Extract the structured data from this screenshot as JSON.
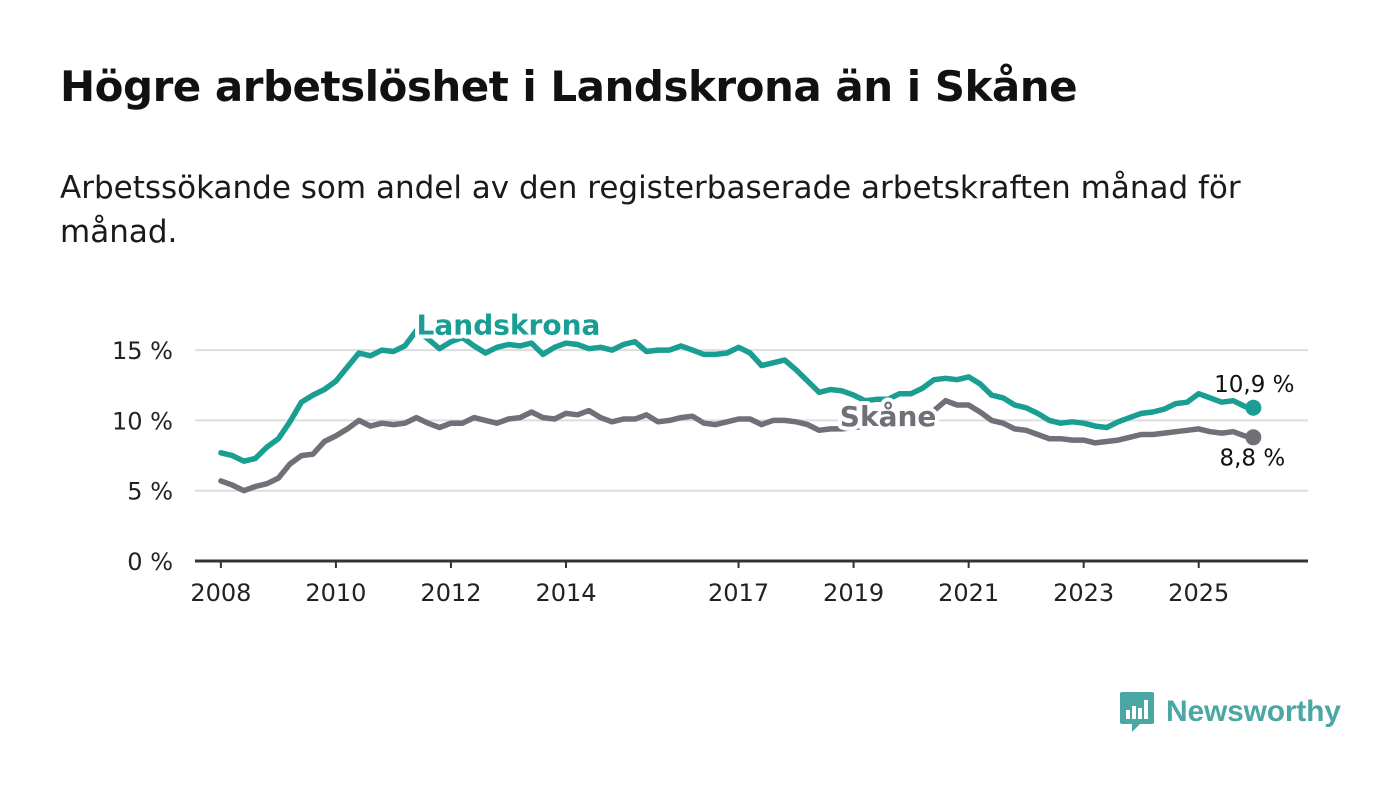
{
  "title": "Högre arbetslöshet i Landskrona än i Skåne",
  "subtitle": "Arbetssökande som andel av den registerbaserade arbetskraften månad för månad.",
  "brand": {
    "name": "Newsworthy",
    "icon": "newsworthy-logo-icon",
    "color": "#4ba7a3"
  },
  "colors": {
    "landskrona": "#1a9e93",
    "skane": "#707078",
    "grid": "#dddddd",
    "axis": "#333333"
  },
  "chart_data": {
    "type": "line",
    "title": "Högre arbetslöshet i Landskrona än i Skåne",
    "xlabel": "",
    "ylabel": "",
    "ylim": [
      0,
      17.5
    ],
    "xlim": [
      2007.55,
      2026.9
    ],
    "x_ticks": [
      2008,
      2010,
      2012,
      2014,
      2017,
      2019,
      2021,
      2023,
      2025
    ],
    "x_tick_labels": [
      "2008",
      "2010",
      "2012",
      "2014",
      "2017",
      "2019",
      "2021",
      "2023",
      "2025"
    ],
    "y_ticks": [
      0,
      5,
      10,
      15
    ],
    "y_tick_labels": [
      "0 %",
      "5 %",
      "10 %",
      "15 %"
    ],
    "series": [
      {
        "name": "Landskrona",
        "end_label": "10,9 %",
        "points": [
          [
            2008.0,
            7.7
          ],
          [
            2008.2,
            7.5
          ],
          [
            2008.4,
            7.1
          ],
          [
            2008.6,
            7.3
          ],
          [
            2008.8,
            8.1
          ],
          [
            2009.0,
            8.7
          ],
          [
            2009.2,
            9.9
          ],
          [
            2009.4,
            11.3
          ],
          [
            2009.6,
            11.8
          ],
          [
            2009.8,
            12.2
          ],
          [
            2010.0,
            12.8
          ],
          [
            2010.2,
            13.8
          ],
          [
            2010.4,
            14.8
          ],
          [
            2010.6,
            14.6
          ],
          [
            2010.8,
            15.0
          ],
          [
            2011.0,
            14.9
          ],
          [
            2011.2,
            15.3
          ],
          [
            2011.4,
            16.4
          ],
          [
            2011.6,
            15.8
          ],
          [
            2011.8,
            15.1
          ],
          [
            2012.0,
            15.6
          ],
          [
            2012.2,
            15.9
          ],
          [
            2012.4,
            15.3
          ],
          [
            2012.6,
            14.8
          ],
          [
            2012.8,
            15.2
          ],
          [
            2013.0,
            15.4
          ],
          [
            2013.2,
            15.3
          ],
          [
            2013.4,
            15.5
          ],
          [
            2013.6,
            14.7
          ],
          [
            2013.8,
            15.2
          ],
          [
            2014.0,
            15.5
          ],
          [
            2014.2,
            15.4
          ],
          [
            2014.4,
            15.1
          ],
          [
            2014.6,
            15.2
          ],
          [
            2014.8,
            15.0
          ],
          [
            2015.0,
            15.4
          ],
          [
            2015.2,
            15.6
          ],
          [
            2015.4,
            14.9
          ],
          [
            2015.6,
            15.0
          ],
          [
            2015.8,
            15.0
          ],
          [
            2016.0,
            15.3
          ],
          [
            2016.2,
            15.0
          ],
          [
            2016.4,
            14.7
          ],
          [
            2016.6,
            14.7
          ],
          [
            2016.8,
            14.8
          ],
          [
            2017.0,
            15.2
          ],
          [
            2017.2,
            14.8
          ],
          [
            2017.4,
            13.9
          ],
          [
            2017.6,
            14.1
          ],
          [
            2017.8,
            14.3
          ],
          [
            2018.0,
            13.6
          ],
          [
            2018.2,
            12.8
          ],
          [
            2018.4,
            12.0
          ],
          [
            2018.6,
            12.2
          ],
          [
            2018.8,
            12.1
          ],
          [
            2019.0,
            11.8
          ],
          [
            2019.2,
            11.4
          ],
          [
            2019.4,
            11.5
          ],
          [
            2019.6,
            11.5
          ],
          [
            2019.8,
            11.9
          ],
          [
            2020.0,
            11.9
          ],
          [
            2020.2,
            12.3
          ],
          [
            2020.4,
            12.9
          ],
          [
            2020.6,
            13.0
          ],
          [
            2020.8,
            12.9
          ],
          [
            2021.0,
            13.1
          ],
          [
            2021.2,
            12.6
          ],
          [
            2021.4,
            11.8
          ],
          [
            2021.6,
            11.6
          ],
          [
            2021.8,
            11.1
          ],
          [
            2022.0,
            10.9
          ],
          [
            2022.2,
            10.5
          ],
          [
            2022.4,
            10.0
          ],
          [
            2022.6,
            9.8
          ],
          [
            2022.8,
            9.9
          ],
          [
            2023.0,
            9.8
          ],
          [
            2023.2,
            9.6
          ],
          [
            2023.4,
            9.5
          ],
          [
            2023.6,
            9.9
          ],
          [
            2023.8,
            10.2
          ],
          [
            2024.0,
            10.5
          ],
          [
            2024.2,
            10.6
          ],
          [
            2024.4,
            10.8
          ],
          [
            2024.6,
            11.2
          ],
          [
            2024.8,
            11.3
          ],
          [
            2025.0,
            11.9
          ],
          [
            2025.2,
            11.6
          ],
          [
            2025.4,
            11.3
          ],
          [
            2025.6,
            11.4
          ],
          [
            2025.8,
            11.0
          ],
          [
            2025.95,
            10.9
          ]
        ]
      },
      {
        "name": "Skåne",
        "end_label": "8,8 %",
        "points": [
          [
            2008.0,
            5.7
          ],
          [
            2008.2,
            5.4
          ],
          [
            2008.4,
            5.0
          ],
          [
            2008.6,
            5.3
          ],
          [
            2008.8,
            5.5
          ],
          [
            2009.0,
            5.9
          ],
          [
            2009.2,
            6.9
          ],
          [
            2009.4,
            7.5
          ],
          [
            2009.6,
            7.6
          ],
          [
            2009.8,
            8.5
          ],
          [
            2010.0,
            8.9
          ],
          [
            2010.2,
            9.4
          ],
          [
            2010.4,
            10.0
          ],
          [
            2010.6,
            9.6
          ],
          [
            2010.8,
            9.8
          ],
          [
            2011.0,
            9.7
          ],
          [
            2011.2,
            9.8
          ],
          [
            2011.4,
            10.2
          ],
          [
            2011.6,
            9.8
          ],
          [
            2011.8,
            9.5
          ],
          [
            2012.0,
            9.8
          ],
          [
            2012.2,
            9.8
          ],
          [
            2012.4,
            10.2
          ],
          [
            2012.6,
            10.0
          ],
          [
            2012.8,
            9.8
          ],
          [
            2013.0,
            10.1
          ],
          [
            2013.2,
            10.2
          ],
          [
            2013.4,
            10.6
          ],
          [
            2013.6,
            10.2
          ],
          [
            2013.8,
            10.1
          ],
          [
            2014.0,
            10.5
          ],
          [
            2014.2,
            10.4
          ],
          [
            2014.4,
            10.7
          ],
          [
            2014.6,
            10.2
          ],
          [
            2014.8,
            9.9
          ],
          [
            2015.0,
            10.1
          ],
          [
            2015.2,
            10.1
          ],
          [
            2015.4,
            10.4
          ],
          [
            2015.6,
            9.9
          ],
          [
            2015.8,
            10.0
          ],
          [
            2016.0,
            10.2
          ],
          [
            2016.2,
            10.3
          ],
          [
            2016.4,
            9.8
          ],
          [
            2016.6,
            9.7
          ],
          [
            2016.8,
            9.9
          ],
          [
            2017.0,
            10.1
          ],
          [
            2017.2,
            10.1
          ],
          [
            2017.4,
            9.7
          ],
          [
            2017.6,
            10.0
          ],
          [
            2017.8,
            10.0
          ],
          [
            2018.0,
            9.9
          ],
          [
            2018.2,
            9.7
          ],
          [
            2018.4,
            9.3
          ],
          [
            2018.6,
            9.4
          ],
          [
            2018.8,
            9.4
          ],
          [
            2019.0,
            9.5
          ],
          [
            2019.2,
            9.6
          ],
          [
            2019.4,
            9.8
          ],
          [
            2019.6,
            9.8
          ],
          [
            2019.8,
            10.0
          ],
          [
            2020.0,
            10.1
          ],
          [
            2020.2,
            10.2
          ],
          [
            2020.4,
            10.7
          ],
          [
            2020.6,
            11.4
          ],
          [
            2020.8,
            11.1
          ],
          [
            2021.0,
            11.1
          ],
          [
            2021.2,
            10.6
          ],
          [
            2021.4,
            10.0
          ],
          [
            2021.6,
            9.8
          ],
          [
            2021.8,
            9.4
          ],
          [
            2022.0,
            9.3
          ],
          [
            2022.2,
            9.0
          ],
          [
            2022.4,
            8.7
          ],
          [
            2022.6,
            8.7
          ],
          [
            2022.8,
            8.6
          ],
          [
            2023.0,
            8.6
          ],
          [
            2023.2,
            8.4
          ],
          [
            2023.4,
            8.5
          ],
          [
            2023.6,
            8.6
          ],
          [
            2023.8,
            8.8
          ],
          [
            2024.0,
            9.0
          ],
          [
            2024.2,
            9.0
          ],
          [
            2024.4,
            9.1
          ],
          [
            2024.6,
            9.2
          ],
          [
            2024.8,
            9.3
          ],
          [
            2025.0,
            9.4
          ],
          [
            2025.2,
            9.2
          ],
          [
            2025.4,
            9.1
          ],
          [
            2025.6,
            9.2
          ],
          [
            2025.8,
            8.9
          ],
          [
            2025.95,
            8.8
          ]
        ]
      }
    ],
    "annotations": [
      {
        "text": "Landskrona",
        "series": "Landskrona",
        "x": 2013.0,
        "y": 16.1
      },
      {
        "text": "Skåne",
        "series": "Skåne",
        "x": 2019.6,
        "y": 9.6
      }
    ]
  }
}
